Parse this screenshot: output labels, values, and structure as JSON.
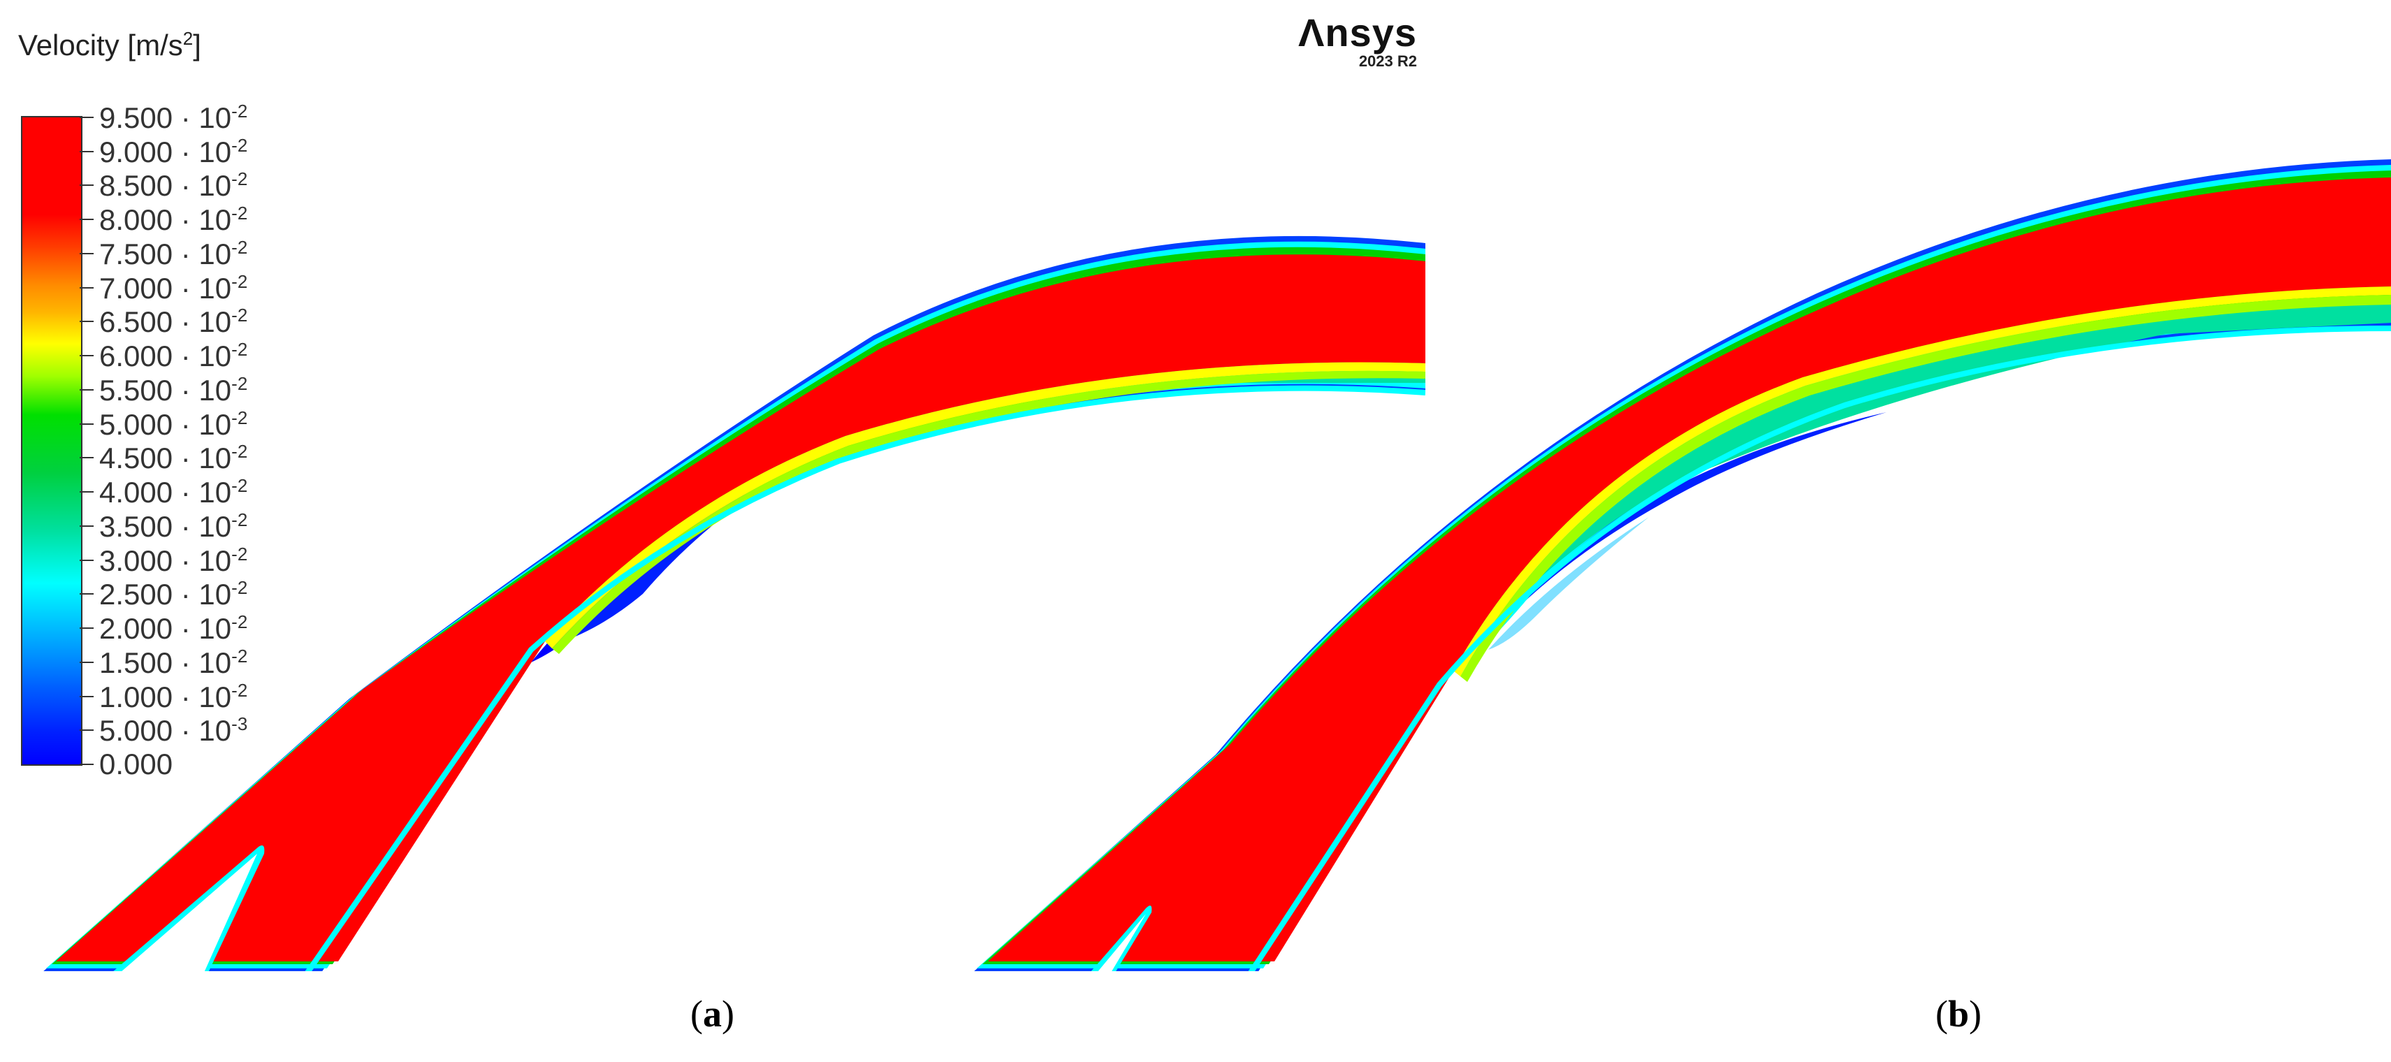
{
  "legend": {
    "title": "Velocity [m/s",
    "title_sup": "2",
    "title_end": "]",
    "ticks": [
      {
        "mantissa": "9.500 · 10",
        "exp": "-2"
      },
      {
        "mantissa": "9.000 · 10",
        "exp": "-2"
      },
      {
        "mantissa": "8.500 · 10",
        "exp": "-2"
      },
      {
        "mantissa": "8.000 · 10",
        "exp": "-2"
      },
      {
        "mantissa": "7.500 · 10",
        "exp": "-2"
      },
      {
        "mantissa": "7.000 · 10",
        "exp": "-2"
      },
      {
        "mantissa": "6.500 · 10",
        "exp": "-2"
      },
      {
        "mantissa": "6.000 · 10",
        "exp": "-2"
      },
      {
        "mantissa": "5.500 · 10",
        "exp": "-2"
      },
      {
        "mantissa": "5.000 · 10",
        "exp": "-2"
      },
      {
        "mantissa": "4.500 · 10",
        "exp": "-2"
      },
      {
        "mantissa": "4.000 · 10",
        "exp": "-2"
      },
      {
        "mantissa": "3.500 · 10",
        "exp": "-2"
      },
      {
        "mantissa": "3.000 · 10",
        "exp": "-2"
      },
      {
        "mantissa": "2.500 · 10",
        "exp": "-2"
      },
      {
        "mantissa": "2.000 · 10",
        "exp": "-2"
      },
      {
        "mantissa": "1.500 · 10",
        "exp": "-2"
      },
      {
        "mantissa": "1.000 · 10",
        "exp": "-2"
      },
      {
        "mantissa": "5.000 · 10",
        "exp": "-3"
      },
      {
        "mantissa": "0.000",
        "exp": ""
      }
    ]
  },
  "logo": {
    "brand": "Λnsys",
    "version": "2023 R2"
  },
  "panels": {
    "a": {
      "open": "(",
      "letter": "a",
      "close": ")"
    },
    "b": {
      "open": "(",
      "letter": "b",
      "close": ")"
    }
  },
  "colors": {
    "red": "#ff0000",
    "orange": "#ff8c00",
    "yellow": "#ffff00",
    "green": "#00d000",
    "cyan": "#00ffff",
    "blue": "#0040ff",
    "deep_blue": "#0000ff"
  }
}
